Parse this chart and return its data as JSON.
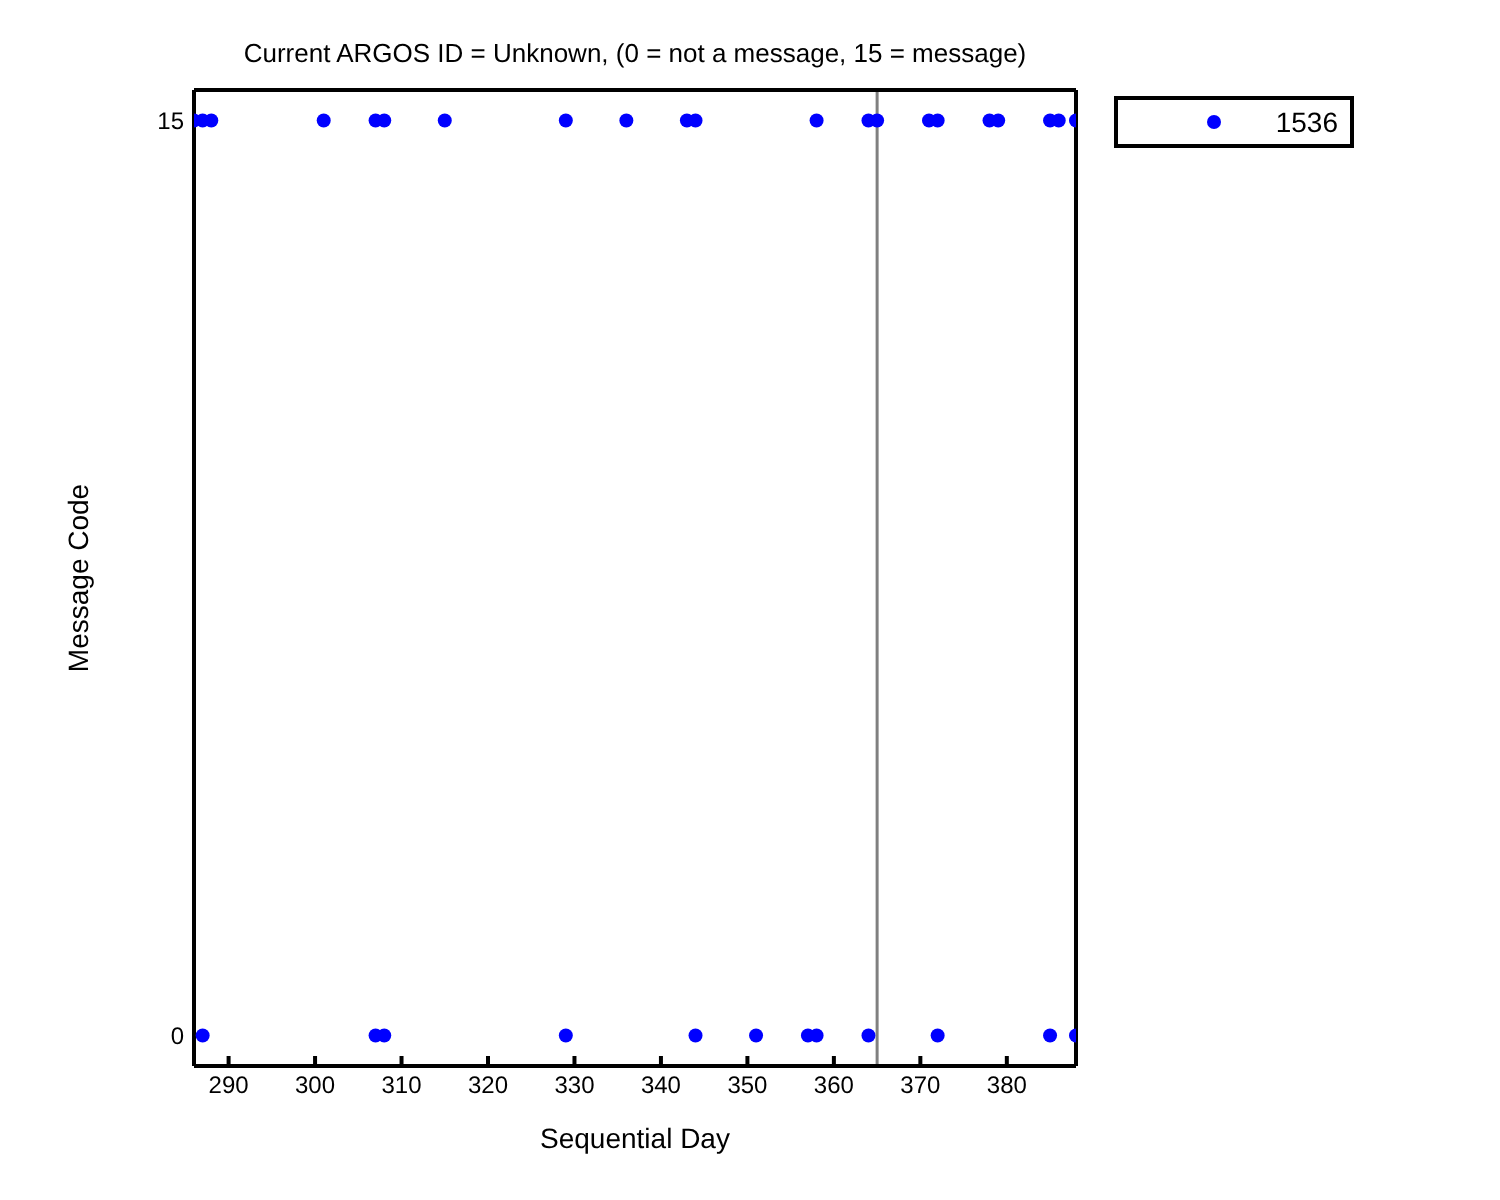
{
  "chart_data": {
    "type": "scatter",
    "title": "Current ARGOS ID = Unknown,  (0 = not a message, 15 = message)",
    "xlabel": "Sequential Day",
    "ylabel": "Message Code",
    "x": [
      286,
      287,
      288,
      301,
      307,
      308,
      315,
      329,
      336,
      343,
      344,
      358,
      364,
      365,
      371,
      372,
      378,
      379,
      385,
      386,
      388,
      287,
      307,
      308,
      329,
      344,
      351,
      357,
      358,
      364,
      372,
      385,
      388
    ],
    "series": [
      {
        "name": "1536",
        "color": "#0000ff",
        "values": [
          15,
          15,
          15,
          15,
          15,
          15,
          15,
          15,
          15,
          15,
          15,
          15,
          15,
          15,
          15,
          15,
          15,
          15,
          15,
          15,
          15,
          0,
          0,
          0,
          0,
          0,
          0,
          0,
          0,
          0,
          0,
          0,
          0
        ]
      }
    ],
    "xlim": [
      286,
      388
    ],
    "xticks": [
      290,
      300,
      310,
      320,
      330,
      340,
      350,
      360,
      370,
      380
    ],
    "ylim": [
      -0.5,
      15.5
    ],
    "yticks": [
      0,
      15
    ],
    "ref_lines": [
      {
        "axis": "x",
        "value": 365,
        "color": "#808080"
      }
    ],
    "legend": "top right",
    "marker": "circle"
  }
}
